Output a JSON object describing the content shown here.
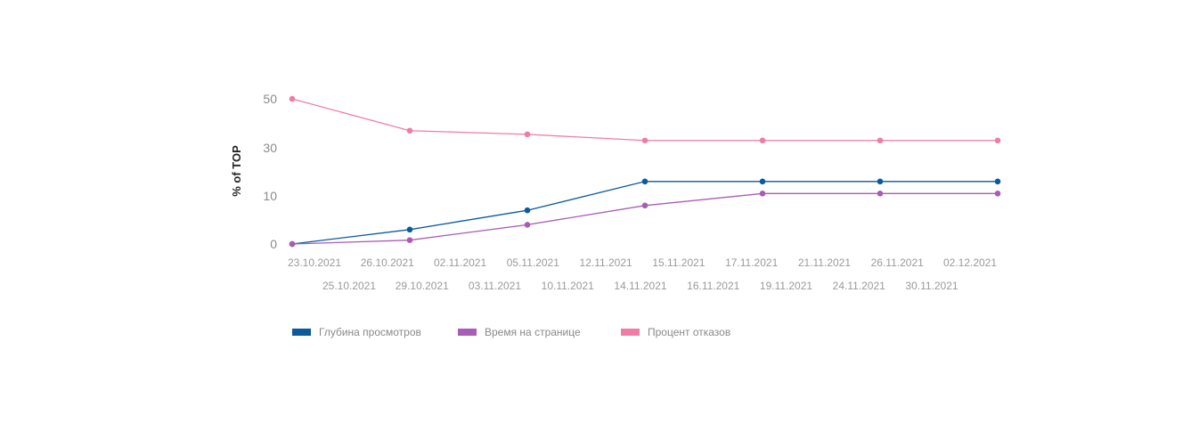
{
  "chart_data": {
    "type": "line",
    "ylabel": "% of TOP",
    "xlabel": "",
    "title": "",
    "y_ticks": [
      "0",
      "10",
      "30",
      "50"
    ],
    "x_tick_labels": {
      "row1": [
        "23.10.2021",
        "26.10.2021",
        "02.11.2021",
        "05.11.2021",
        "12.11.2021",
        "15.11.2021",
        "17.11.2021",
        "21.11.2021",
        "26.11.2021",
        "02.12.2021"
      ],
      "row2": [
        "25.10.2021",
        "29.10.2021",
        "03.11.2021",
        "10.11.2021",
        "14.11.2021",
        "16.11.2021",
        "19.11.2021",
        "24.11.2021",
        "30.11.2021"
      ]
    },
    "series": [
      {
        "name": "Глубина просмотров",
        "color": "#0a5a9c",
        "values": [
          0,
          3,
          7,
          16,
          16,
          16,
          16
        ]
      },
      {
        "name": "Время на странице",
        "color": "#a85cb5",
        "values": [
          0,
          0.8,
          4,
          8,
          11,
          11,
          11
        ]
      },
      {
        "name": "Процент отказов",
        "color": "#f07ca6",
        "values": [
          50,
          37,
          35.5,
          33,
          33,
          33,
          33
        ]
      }
    ],
    "legend_position": "bottom",
    "grid": false
  }
}
